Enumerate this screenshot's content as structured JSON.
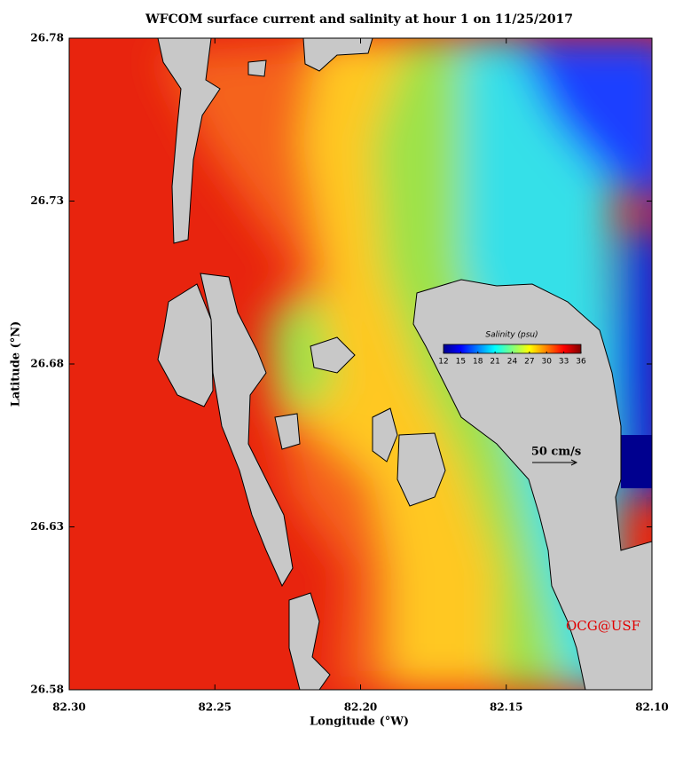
{
  "chart_data": {
    "type": "map",
    "title": "WFCOM surface current and salinity at hour 1 on 11/25/2017",
    "x_label": "Longitude (°W)",
    "y_label": "Latitude (°N)",
    "xlim": [
      82.3,
      82.1
    ],
    "xticks": [
      {
        "value": 82.3,
        "label": "82.30"
      },
      {
        "value": 82.25,
        "label": "82.25"
      },
      {
        "value": 82.2,
        "label": "82.20"
      },
      {
        "value": 82.15,
        "label": "82.15"
      },
      {
        "value": 82.1,
        "label": "82.10"
      }
    ],
    "ylim": [
      26.58,
      26.78
    ],
    "yticks": [
      26.58,
      26.63,
      26.68,
      26.73,
      26.78
    ],
    "colorbar": {
      "label": "Salinity (psu)",
      "lim": [
        12,
        36
      ],
      "ticks": [
        12,
        15,
        18,
        21,
        24,
        27,
        30,
        33,
        36
      ]
    },
    "scale_label": "50 cm/s",
    "credit": "OCG@USF"
  }
}
